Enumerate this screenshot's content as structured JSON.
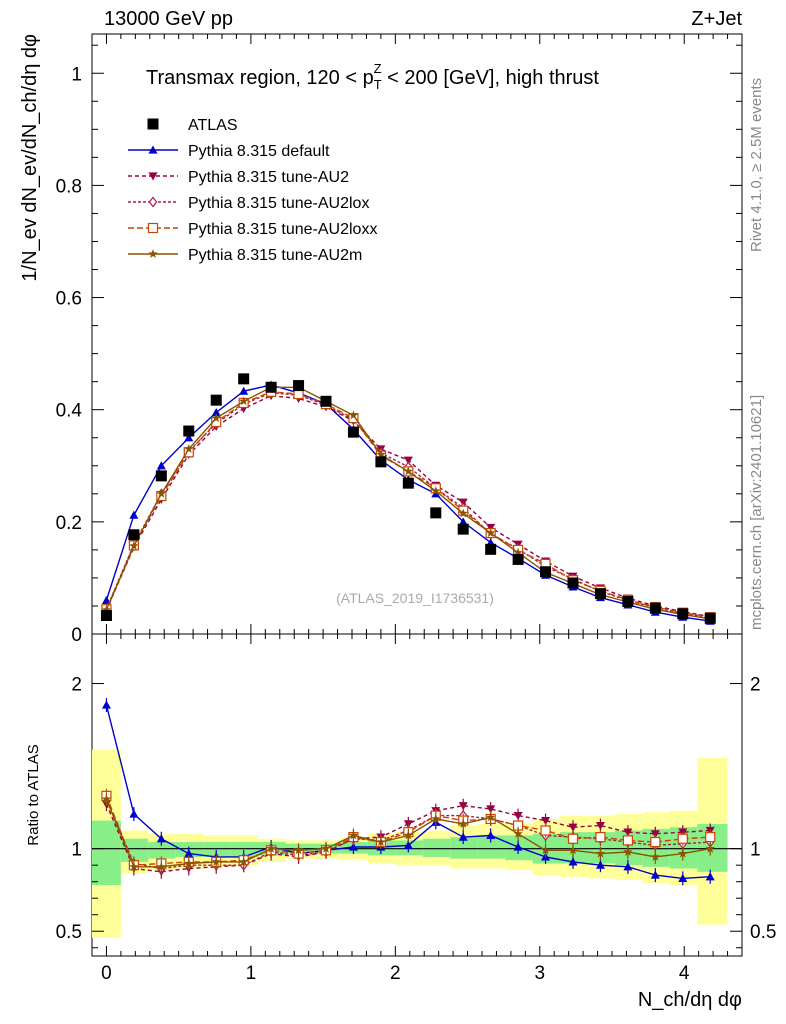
{
  "header": {
    "left": "13000 GeV pp",
    "right": "Z+Jet"
  },
  "side_labels": {
    "rivet": "Rivet 4.1.0, ≥ 2.5M events",
    "mcplots": "mcplots.cern.ch [arXiv:2401.10621]"
  },
  "chart_data": {
    "type": "line",
    "title_main": "Transmax region, 120 < p",
    "title_sup": "Z",
    "title_sub": "T",
    "title_tail": " < 200 [GeV], high thrust",
    "watermark": "(ATLAS_2019_I1736531)",
    "ylabel_top": "1/N_ev dN_ev/dN_ch/dη dφ",
    "ylabel_bottom": "Ratio to ATLAS",
    "xlabel": "N_ch/dη dφ",
    "xlim": [
      -0.1,
      4.4
    ],
    "ylim_top": [
      0,
      1.07
    ],
    "ylim_bottom": [
      0.35,
      2.3
    ],
    "x_ticks": [
      "0",
      "1",
      "2",
      "3",
      "4"
    ],
    "y_ticks_top": [
      "0",
      "0.2",
      "0.4",
      "0.6",
      "0.8",
      "1"
    ],
    "y_ticks_bottom": [
      "0.5",
      "1",
      "2"
    ],
    "x": [
      0,
      0.19,
      0.38,
      0.57,
      0.76,
      0.95,
      1.14,
      1.33,
      1.52,
      1.71,
      1.9,
      2.09,
      2.28,
      2.47,
      2.66,
      2.85,
      3.04,
      3.23,
      3.42,
      3.61,
      3.8,
      3.99,
      4.18
    ],
    "data": {
      "name": "ATLAS",
      "color": "#000000",
      "values": [
        0.033,
        0.177,
        0.282,
        0.362,
        0.417,
        0.455,
        0.44,
        0.443,
        0.415,
        0.36,
        0.307,
        0.269,
        0.216,
        0.187,
        0.151,
        0.133,
        0.111,
        0.091,
        0.072,
        0.058,
        0.046,
        0.036,
        0.028
      ]
    },
    "series": [
      {
        "name": "Pythia 8.315 default",
        "color": "#0000cc",
        "dash": "",
        "marker": "tri-up",
        "values": [
          0.06,
          0.212,
          0.3,
          0.35,
          0.395,
          0.433,
          0.444,
          0.43,
          0.41,
          0.365,
          0.31,
          0.275,
          0.25,
          0.2,
          0.163,
          0.135,
          0.105,
          0.084,
          0.065,
          0.052,
          0.039,
          0.03,
          0.023
        ],
        "ratio": [
          1.87,
          1.21,
          1.06,
          0.97,
          0.95,
          0.95,
          1.01,
          0.97,
          0.99,
          1.01,
          1.01,
          1.02,
          1.16,
          1.07,
          1.08,
          1.01,
          0.95,
          0.92,
          0.9,
          0.89,
          0.84,
          0.82,
          0.83
        ]
      },
      {
        "name": "Pythia 8.315 tune-AU2",
        "color": "#990044",
        "dash": "4,3",
        "marker": "tri-down",
        "values": [
          0.042,
          0.155,
          0.24,
          0.32,
          0.37,
          0.402,
          0.425,
          0.42,
          0.405,
          0.38,
          0.33,
          0.31,
          0.265,
          0.235,
          0.19,
          0.16,
          0.13,
          0.103,
          0.082,
          0.064,
          0.05,
          0.04,
          0.031
        ],
        "ratio": [
          1.27,
          0.88,
          0.86,
          0.88,
          0.89,
          0.9,
          0.97,
          0.95,
          0.98,
          1.06,
          1.07,
          1.15,
          1.23,
          1.26,
          1.24,
          1.2,
          1.17,
          1.13,
          1.14,
          1.1,
          1.09,
          1.1,
          1.11
        ]
      },
      {
        "name": "Pythia 8.315 tune-AU2lox",
        "color": "#aa2244",
        "dash": "3,2",
        "marker": "diamond-open",
        "values": [
          0.045,
          0.16,
          0.25,
          0.326,
          0.375,
          0.41,
          0.43,
          0.426,
          0.408,
          0.382,
          0.323,
          0.298,
          0.26,
          0.225,
          0.178,
          0.152,
          0.12,
          0.098,
          0.076,
          0.06,
          0.047,
          0.037,
          0.029
        ],
        "ratio": [
          1.3,
          0.91,
          0.88,
          0.9,
          0.9,
          0.9,
          0.98,
          0.96,
          0.98,
          1.06,
          1.05,
          1.11,
          1.2,
          1.2,
          1.18,
          1.14,
          1.08,
          1.07,
          1.06,
          1.04,
          1.02,
          1.03,
          1.04
        ]
      },
      {
        "name": "Pythia 8.315 tune-AU2loxx",
        "color": "#cc4400",
        "dash": "6,3",
        "marker": "square-open",
        "values": [
          0.044,
          0.158,
          0.246,
          0.324,
          0.378,
          0.412,
          0.432,
          0.428,
          0.41,
          0.385,
          0.318,
          0.29,
          0.26,
          0.22,
          0.18,
          0.15,
          0.125,
          0.096,
          0.077,
          0.061,
          0.048,
          0.038,
          0.03
        ],
        "ratio": [
          1.32,
          0.9,
          0.91,
          0.92,
          0.92,
          0.93,
          0.99,
          0.97,
          0.99,
          1.07,
          1.04,
          1.1,
          1.2,
          1.17,
          1.18,
          1.14,
          1.11,
          1.06,
          1.07,
          1.05,
          1.04,
          1.06,
          1.07
        ]
      },
      {
        "name": "Pythia 8.315 tune-AU2m",
        "color": "#885500",
        "dash": "",
        "marker": "star",
        "values": [
          0.043,
          0.157,
          0.25,
          0.33,
          0.385,
          0.415,
          0.44,
          0.44,
          0.415,
          0.39,
          0.32,
          0.29,
          0.255,
          0.215,
          0.18,
          0.145,
          0.11,
          0.09,
          0.07,
          0.057,
          0.044,
          0.035,
          0.027
        ],
        "ratio": [
          1.3,
          0.89,
          0.89,
          0.91,
          0.92,
          0.92,
          1.0,
          0.99,
          1.0,
          1.08,
          1.04,
          1.08,
          1.18,
          1.15,
          1.19,
          1.09,
          0.99,
          0.99,
          0.97,
          0.98,
          0.95,
          0.97,
          1.0
        ]
      }
    ],
    "ratio_bands": {
      "x_edges": [
        -0.1,
        0.1,
        0.29,
        0.48,
        0.67,
        0.86,
        1.05,
        1.24,
        1.43,
        1.62,
        1.81,
        2.0,
        2.19,
        2.38,
        2.57,
        2.76,
        2.95,
        3.14,
        3.33,
        3.52,
        3.71,
        3.9,
        4.09,
        4.3
      ],
      "inner_lo": [
        0.78,
        0.92,
        0.94,
        0.95,
        0.95,
        0.95,
        0.96,
        0.97,
        0.97,
        0.97,
        0.96,
        0.96,
        0.95,
        0.94,
        0.94,
        0.93,
        0.91,
        0.91,
        0.91,
        0.9,
        0.89,
        0.88,
        0.86
      ],
      "inner_hi": [
        1.17,
        1.06,
        1.04,
        1.04,
        1.04,
        1.04,
        1.04,
        1.03,
        1.03,
        1.04,
        1.05,
        1.05,
        1.06,
        1.07,
        1.08,
        1.08,
        1.09,
        1.1,
        1.1,
        1.11,
        1.12,
        1.13,
        1.15
      ],
      "outer_lo": [
        0.46,
        0.85,
        0.87,
        0.88,
        0.89,
        0.9,
        0.92,
        0.94,
        0.94,
        0.93,
        0.91,
        0.9,
        0.9,
        0.88,
        0.88,
        0.87,
        0.84,
        0.83,
        0.82,
        0.81,
        0.79,
        0.78,
        0.54
      ],
      "outer_hi": [
        1.6,
        1.11,
        1.09,
        1.09,
        1.08,
        1.08,
        1.06,
        1.05,
        1.05,
        1.07,
        1.09,
        1.1,
        1.11,
        1.14,
        1.15,
        1.15,
        1.18,
        1.2,
        1.2,
        1.21,
        1.22,
        1.23,
        1.55
      ],
      "inner_color": "#88ee88",
      "outer_color": "#ffff99"
    }
  }
}
